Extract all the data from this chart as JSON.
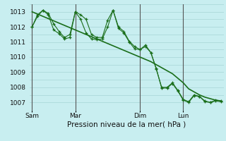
{
  "background_color": "#c8eef0",
  "grid_color": "#9ecece",
  "line_color": "#1a6e1a",
  "marker_color": "#1a6e1a",
  "xlabel": "Pression niveau de la mer( hPa )",
  "ylim": [
    1006.5,
    1013.5
  ],
  "yticks": [
    1007,
    1008,
    1009,
    1010,
    1011,
    1012,
    1013
  ],
  "day_labels": [
    "Sam",
    "Mar",
    "Dim",
    "Lun"
  ],
  "day_positions": [
    0,
    8,
    20,
    28
  ],
  "num_points": 36,
  "series1": [
    1012.0,
    1012.7,
    1013.1,
    1012.9,
    1012.2,
    1011.7,
    1011.3,
    1011.5,
    1013.0,
    1012.8,
    1012.5,
    1011.5,
    1011.3,
    1011.3,
    1012.45,
    1013.1,
    1012.0,
    1011.7,
    1011.05,
    1010.7,
    1010.5,
    1010.8,
    1010.3,
    1009.2,
    1008.0,
    1008.0,
    1008.3,
    1007.8,
    1007.2,
    1007.05,
    1007.5,
    1007.4,
    1007.1,
    1007.0,
    1007.15,
    1007.1
  ],
  "series2": [
    1012.0,
    1012.8,
    1013.1,
    1012.8,
    1011.8,
    1011.55,
    1011.2,
    1011.3,
    1013.0,
    1012.5,
    1011.6,
    1011.2,
    1011.15,
    1011.2,
    1012.0,
    1013.1,
    1011.9,
    1011.6,
    1011.0,
    1010.55,
    1010.5,
    1010.7,
    1010.3,
    1009.25,
    1007.95,
    1007.95,
    1008.25,
    1007.75,
    1007.15,
    1007.0,
    1007.45,
    1007.4,
    1007.05,
    1007.0,
    1007.1,
    1007.05
  ],
  "trend": [
    1013.0,
    1012.85,
    1012.7,
    1012.55,
    1012.4,
    1012.25,
    1012.1,
    1011.95,
    1011.8,
    1011.65,
    1011.5,
    1011.35,
    1011.2,
    1011.05,
    1010.9,
    1010.75,
    1010.6,
    1010.45,
    1010.3,
    1010.15,
    1010.0,
    1009.85,
    1009.7,
    1009.5,
    1009.3,
    1009.1,
    1008.9,
    1008.6,
    1008.3,
    1007.9,
    1007.7,
    1007.5,
    1007.35,
    1007.25,
    1007.15,
    1007.1
  ],
  "xlabel_fontsize": 7.5,
  "tick_fontsize": 6.5
}
